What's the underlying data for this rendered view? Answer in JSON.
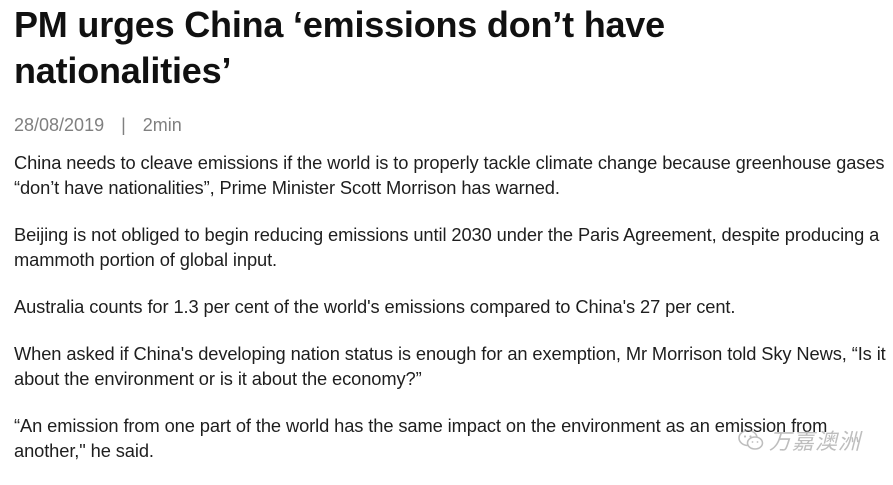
{
  "article": {
    "headline": "PM urges China ‘emissions don’t have nationalities’",
    "date": "28/08/2019",
    "separator": "|",
    "read_time": "2min",
    "paragraphs": [
      "China needs to cleave emissions if the world is to properly tackle climate change because greenhouse gases “don’t have nationalities”, Prime Minister Scott Morrison has warned.",
      "Beijing is not obliged to begin reducing emissions until 2030 under the Paris Agreement, despite producing a mammoth portion of global input.",
      "Australia counts for 1.3 per cent of the world's emissions compared to China's 27 per cent.",
      "When asked if China's developing nation status is enough for an exemption, Mr Morrison told Sky News, “Is it about the environment or is it about the economy?”",
      "“An emission from one part of the world has the same impact on the environment as an emission from another,\" he said."
    ]
  },
  "watermark": {
    "text": "万嘉澳洲",
    "icon": "wechat-icon"
  },
  "colors": {
    "headline": "#111111",
    "meta": "#808080",
    "body": "#1e1e1e",
    "background": "#ffffff"
  }
}
